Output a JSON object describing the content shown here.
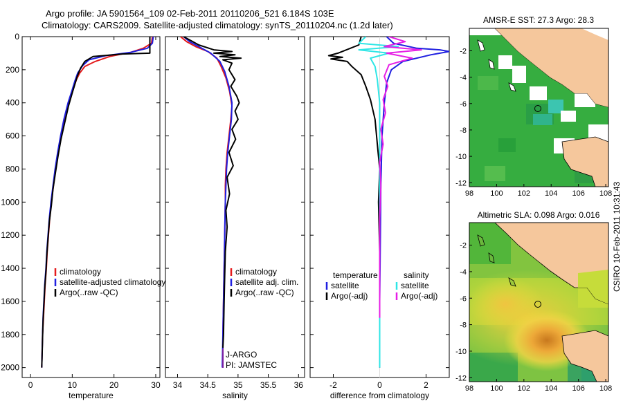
{
  "title": {
    "line1": "Argo profile: JA 5901564_109 02-Feb-2011 20110206_521 6.184S 103E",
    "line2": "Climatology: CARS2009. Satellite-adjusted climatology: synTS_20110204.nc (1.2d later)"
  },
  "credit": "CSIRO 10-Feb-2011 10:31:43",
  "colors": {
    "climatology": "#e41a1c",
    "satellite": "#1f1fe0",
    "argo": "#000000",
    "argo_adj": "#e61ee6",
    "sal_sat": "#2ee6e6",
    "land": "#f5c79c"
  },
  "chart_data": [
    {
      "id": "temperature",
      "type": "line",
      "xlabel": "temperature",
      "xlim": [
        -2,
        31
      ],
      "xticks": [
        0,
        10,
        20,
        30
      ],
      "ylim": [
        0,
        2060
      ],
      "yticks": [
        0,
        200,
        400,
        600,
        800,
        1000,
        1200,
        1400,
        1600,
        1800,
        2000
      ],
      "y_reversed": true,
      "legend": [
        "climatology",
        "satellite-adjusted climatology",
        "Argo(..raw -QC)"
      ],
      "series": [
        {
          "name": "climatology",
          "color": "#e41a1c",
          "points": [
            [
              29.2,
              0
            ],
            [
              29,
              40
            ],
            [
              27,
              70
            ],
            [
              24,
              95
            ],
            [
              19,
              120
            ],
            [
              15.5,
              150
            ],
            [
              13,
              180
            ],
            [
              11.8,
              220
            ],
            [
              11,
              260
            ],
            [
              10.2,
              320
            ],
            [
              9.2,
              400
            ],
            [
              8.2,
              500
            ],
            [
              7.3,
              600
            ],
            [
              6.6,
              700
            ],
            [
              6,
              800
            ],
            [
              5.5,
              900
            ],
            [
              5,
              1000
            ],
            [
              4.6,
              1100
            ],
            [
              4.3,
              1200
            ],
            [
              4,
              1300
            ],
            [
              3.8,
              1400
            ],
            [
              3.5,
              1500
            ],
            [
              3.3,
              1600
            ],
            [
              3.1,
              1700
            ],
            [
              2.9,
              1800
            ],
            [
              2.8,
              1900
            ],
            [
              2.7,
              2000
            ]
          ]
        },
        {
          "name": "satellite-adjusted climatology",
          "color": "#1f1fe0",
          "points": [
            [
              29.4,
              0
            ],
            [
              29.2,
              40
            ],
            [
              28,
              70
            ],
            [
              24,
              95
            ],
            [
              18,
              115
            ],
            [
              14,
              140
            ],
            [
              12.5,
              175
            ],
            [
              11.3,
              220
            ],
            [
              10.6,
              270
            ],
            [
              10,
              320
            ],
            [
              9,
              400
            ],
            [
              8,
              500
            ],
            [
              7.2,
              600
            ],
            [
              6.5,
              700
            ],
            [
              5.9,
              800
            ],
            [
              5.4,
              900
            ],
            [
              4.9,
              1000
            ],
            [
              4.5,
              1100
            ],
            [
              4.2,
              1200
            ],
            [
              3.9,
              1300
            ],
            [
              3.7,
              1400
            ],
            [
              3.4,
              1500
            ],
            [
              3.2,
              1600
            ],
            [
              3,
              1700
            ],
            [
              2.9,
              1800
            ],
            [
              2.8,
              1900
            ],
            [
              2.7,
              2000
            ]
          ]
        },
        {
          "name": "Argo(..raw -QC)",
          "color": "#000000",
          "points": [
            [
              28.6,
              0
            ],
            [
              28.6,
              100
            ],
            [
              22,
              105
            ],
            [
              15,
              120
            ],
            [
              13,
              150
            ],
            [
              12,
              190
            ],
            [
              11.2,
              240
            ],
            [
              10.6,
              290
            ],
            [
              10,
              340
            ],
            [
              9.1,
              420
            ],
            [
              8.2,
              520
            ],
            [
              7.3,
              620
            ],
            [
              6.6,
              720
            ],
            [
              6,
              820
            ],
            [
              5.4,
              920
            ],
            [
              5,
              1020
            ],
            [
              4.5,
              1120
            ],
            [
              4.2,
              1220
            ],
            [
              3.9,
              1320
            ],
            [
              3.7,
              1420
            ],
            [
              3.4,
              1520
            ],
            [
              3.2,
              1620
            ],
            [
              3,
              1720
            ],
            [
              2.9,
              1820
            ],
            [
              2.8,
              1920
            ],
            [
              2.7,
              2000
            ]
          ]
        }
      ]
    },
    {
      "id": "salinity",
      "type": "line",
      "xlabel": "salinity",
      "xlim": [
        33.8,
        36.1
      ],
      "xticks": [
        34,
        34.5,
        35,
        35.5,
        36
      ],
      "ylim": [
        0,
        2060
      ],
      "y_reversed": true,
      "legend": [
        "climatology",
        "satellite adj. clim.",
        "Argo(..raw -QC)"
      ],
      "annotations": [
        "J-ARGO",
        "PI: JAMSTEC"
      ],
      "series": [
        {
          "name": "climatology",
          "color": "#e41a1c",
          "points": [
            [
              34.05,
              0
            ],
            [
              34.15,
              30
            ],
            [
              34.3,
              60
            ],
            [
              34.5,
              90
            ],
            [
              34.65,
              130
            ],
            [
              34.72,
              180
            ],
            [
              34.8,
              250
            ],
            [
              34.86,
              330
            ],
            [
              34.9,
              420
            ],
            [
              34.88,
              500
            ],
            [
              34.85,
              600
            ],
            [
              34.82,
              700
            ],
            [
              34.8,
              800
            ],
            [
              34.79,
              900
            ],
            [
              34.79,
              1000
            ],
            [
              34.78,
              1200
            ],
            [
              34.77,
              1400
            ],
            [
              34.76,
              1600
            ],
            [
              34.75,
              1800
            ],
            [
              34.75,
              2000
            ]
          ]
        },
        {
          "name": "satellite adj. clim.",
          "color": "#1f1fe0",
          "points": [
            [
              34.1,
              0
            ],
            [
              34.2,
              30
            ],
            [
              34.35,
              60
            ],
            [
              34.55,
              100
            ],
            [
              34.7,
              150
            ],
            [
              34.78,
              210
            ],
            [
              34.85,
              300
            ],
            [
              34.9,
              400
            ],
            [
              34.89,
              500
            ],
            [
              34.86,
              600
            ],
            [
              34.83,
              700
            ],
            [
              34.81,
              800
            ],
            [
              34.8,
              900
            ],
            [
              34.79,
              1000
            ],
            [
              34.78,
              1200
            ],
            [
              34.77,
              1400
            ],
            [
              34.76,
              1600
            ],
            [
              34.75,
              1800
            ],
            [
              34.74,
              2000
            ]
          ]
        },
        {
          "name": "Argo(..raw -QC)",
          "color": "#000000",
          "points": [
            [
              34.1,
              0
            ],
            [
              34.2,
              20
            ],
            [
              34.35,
              50
            ],
            [
              34.6,
              80
            ],
            [
              34.9,
              90
            ],
            [
              34.6,
              100
            ],
            [
              34.95,
              110
            ],
            [
              34.7,
              120
            ],
            [
              35.05,
              130
            ],
            [
              34.75,
              140
            ],
            [
              34.9,
              160
            ],
            [
              34.85,
              200
            ],
            [
              34.95,
              260
            ],
            [
              34.88,
              300
            ],
            [
              34.98,
              360
            ],
            [
              35.02,
              400
            ],
            [
              34.95,
              450
            ],
            [
              35,
              500
            ],
            [
              34.9,
              560
            ],
            [
              34.96,
              620
            ],
            [
              34.85,
              700
            ],
            [
              34.92,
              780
            ],
            [
              34.82,
              850
            ],
            [
              34.86,
              950
            ],
            [
              34.8,
              1050
            ],
            [
              34.82,
              1150
            ],
            [
              34.79,
              1300
            ],
            [
              34.78,
              1450
            ],
            [
              34.77,
              1600
            ],
            [
              34.76,
              1800
            ],
            [
              34.75,
              1880
            ]
          ]
        }
      ]
    },
    {
      "id": "difference",
      "type": "line",
      "xlabel": "difference from climatology",
      "xlim": [
        -3,
        3
      ],
      "xticks": [
        -2,
        0,
        2
      ],
      "ylim": [
        0,
        2060
      ],
      "y_reversed": true,
      "legend": [
        "temperature",
        "satellite",
        "Argo(-adj)",
        "salinity",
        "satellite",
        "Argo(-adj)"
      ],
      "series": [
        {
          "name": "temperature satellite",
          "color": "#1f1fe0",
          "points": [
            [
              0.3,
              0
            ],
            [
              0.6,
              40
            ],
            [
              1.6,
              70
            ],
            [
              2.6,
              80
            ],
            [
              3,
              90
            ],
            [
              2.2,
              110
            ],
            [
              1,
              150
            ],
            [
              0.5,
              200
            ],
            [
              0.3,
              280
            ],
            [
              0.2,
              400
            ],
            [
              0.1,
              600
            ],
            [
              0.05,
              900
            ],
            [
              0.03,
              1200
            ],
            [
              0,
              1600
            ],
            [
              0,
              2000
            ]
          ]
        },
        {
          "name": "temperature Argo(-adj)",
          "color": "#000000",
          "points": [
            [
              -0.8,
              0
            ],
            [
              -0.9,
              50
            ],
            [
              -1.8,
              100
            ],
            [
              -2.2,
              115
            ],
            [
              -1.6,
              125
            ],
            [
              -2.1,
              135
            ],
            [
              -1.4,
              150
            ],
            [
              -1.2,
              180
            ],
            [
              -0.8,
              230
            ],
            [
              -0.6,
              300
            ],
            [
              -0.4,
              380
            ],
            [
              -0.2,
              500
            ],
            [
              -0.1,
              650
            ],
            [
              0,
              800
            ],
            [
              -0.05,
              1000
            ],
            [
              0,
              1300
            ],
            [
              0,
              1600
            ],
            [
              0,
              2000
            ]
          ]
        },
        {
          "name": "salinity satellite",
          "color": "#2ee6e6",
          "points": [
            [
              -0.6,
              0
            ],
            [
              -0.9,
              40
            ],
            [
              0.8,
              60
            ],
            [
              -0.9,
              80
            ],
            [
              0.4,
              100
            ],
            [
              -0.4,
              130
            ],
            [
              -0.2,
              180
            ],
            [
              -0.1,
              260
            ],
            [
              0,
              400
            ],
            [
              0,
              800
            ],
            [
              0,
              1200
            ],
            [
              0,
              1600
            ],
            [
              0,
              2000
            ]
          ]
        },
        {
          "name": "salinity Argo(-adj)",
          "color": "#e61ee6",
          "points": [
            [
              0.4,
              0
            ],
            [
              1.1,
              30
            ],
            [
              0.2,
              60
            ],
            [
              1.8,
              80
            ],
            [
              0.3,
              100
            ],
            [
              1.4,
              130
            ],
            [
              0.4,
              170
            ],
            [
              0.2,
              240
            ],
            [
              0.35,
              300
            ],
            [
              0.15,
              380
            ],
            [
              0.25,
              460
            ],
            [
              0.05,
              560
            ],
            [
              0.15,
              650
            ],
            [
              0,
              760
            ],
            [
              0.05,
              900
            ],
            [
              0,
              1100
            ],
            [
              0,
              1400
            ],
            [
              0,
              1700
            ]
          ]
        }
      ]
    },
    {
      "id": "sst_map",
      "type": "heatmap",
      "title": "AMSR-E SST: 27.3 Argo: 28.3",
      "xticks": [
        98,
        100,
        102,
        104,
        106,
        108
      ],
      "yticks": [
        -2,
        -4,
        -6,
        -8,
        -10,
        -12
      ],
      "xlim": [
        98,
        108.2
      ],
      "ylim": [
        -12.3,
        -0.3
      ],
      "marker": {
        "lon": 103,
        "lat": -6.184
      }
    },
    {
      "id": "sla_map",
      "type": "heatmap",
      "title": "Altimetric SLA: 0.098 Argo: 0.016",
      "xticks": [
        98,
        100,
        102,
        104,
        106,
        108
      ],
      "yticks": [
        -2,
        -4,
        -6,
        -8,
        -10,
        -12
      ],
      "xlim": [
        98,
        108.2
      ],
      "ylim": [
        -12.3,
        -0.3
      ],
      "marker": {
        "lon": 103,
        "lat": -6.184
      }
    }
  ]
}
